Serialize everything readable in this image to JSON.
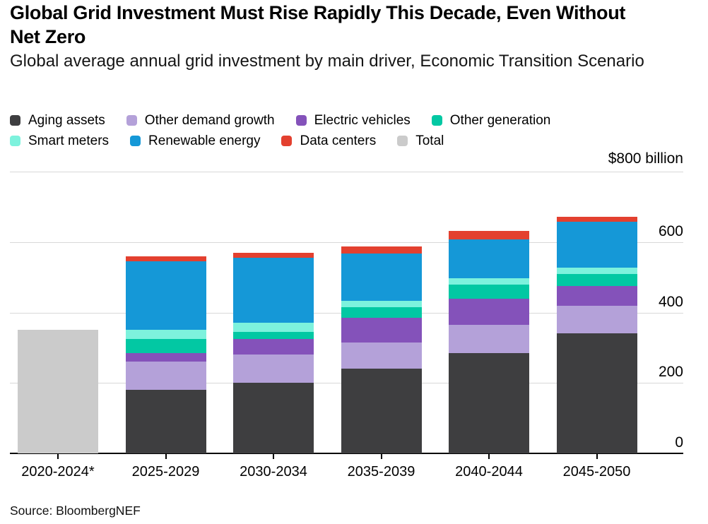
{
  "header": {
    "title": "Global Grid Investment Must Rise Rapidly This Decade, Even Without Net Zero",
    "subtitle": "Global average annual grid investment by main driver, Economic Transition Scenario"
  },
  "source": "Source: BloombergNEF",
  "chart_data": {
    "type": "bar",
    "stacked": true,
    "title": "Global Grid Investment Must Rise Rapidly This Decade, Even Without Net Zero",
    "subtitle": "Global average annual grid investment by main driver, Economic Transition Scenario",
    "unit_label": "$800 billion",
    "ylim": [
      0,
      800
    ],
    "grid": "horizontal",
    "legend_position": "top",
    "gridline_values": [
      800,
      600,
      400,
      200
    ],
    "ytick_labels": [
      {
        "value": 600,
        "label": "600"
      },
      {
        "value": 400,
        "label": "400"
      },
      {
        "value": 200,
        "label": "200"
      },
      {
        "value": 0,
        "label": "0"
      }
    ],
    "categories": [
      "2020-2024*",
      "2025-2029",
      "2030-2034",
      "2035-2039",
      "2040-2044",
      "2045-2050"
    ],
    "series": [
      {
        "name": "Total",
        "color": "#cbcbcb",
        "values": [
          350,
          0,
          0,
          0,
          0,
          0
        ]
      },
      {
        "name": "Aging assets",
        "color": "#3e3e40",
        "values": [
          0,
          180,
          200,
          240,
          285,
          340
        ]
      },
      {
        "name": "Other demand growth",
        "color": "#b4a1d9",
        "values": [
          0,
          80,
          80,
          75,
          80,
          80
        ]
      },
      {
        "name": "Electric vehicles",
        "color": "#8452ba",
        "values": [
          0,
          25,
          45,
          70,
          75,
          55
        ]
      },
      {
        "name": "Other generation",
        "color": "#02c8a3",
        "values": [
          0,
          40,
          20,
          30,
          40,
          35
        ]
      },
      {
        "name": "Smart meters",
        "color": "#7df2dd",
        "values": [
          0,
          25,
          25,
          18,
          17,
          17
        ]
      },
      {
        "name": "Renewable energy",
        "color": "#1598d7",
        "values": [
          0,
          195,
          185,
          135,
          110,
          130
        ]
      },
      {
        "name": "Data centers",
        "color": "#e3402f",
        "values": [
          0,
          15,
          15,
          20,
          25,
          15
        ]
      }
    ],
    "legend_rows": [
      [
        "Aging assets",
        "Other demand growth",
        "Electric vehicles",
        "Other generation"
      ],
      [
        "Smart meters",
        "Renewable energy",
        "Data centers",
        "Total"
      ]
    ]
  }
}
